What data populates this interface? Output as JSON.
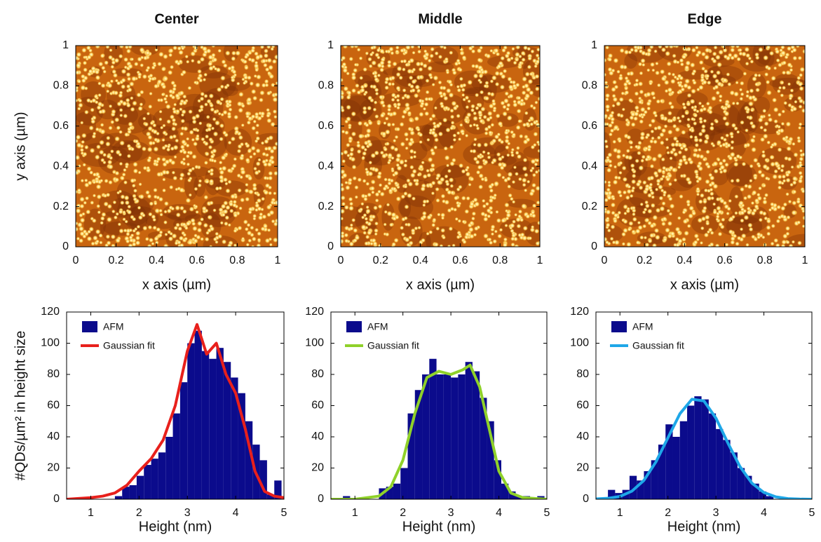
{
  "chart_data": [
    {
      "type": "image",
      "title": "Center",
      "xlabel": "x axis (µm)",
      "ylabel": "y axis (µm)",
      "xlim": [
        0,
        1
      ],
      "ylim": [
        0,
        1
      ],
      "xticks": [
        0,
        0.2,
        0.4,
        0.6,
        0.8,
        1
      ],
      "yticks": [
        0,
        0.2,
        0.4,
        0.6,
        0.8,
        1
      ]
    },
    {
      "type": "image",
      "title": "Middle",
      "xlabel": "x axis (µm)",
      "xlim": [
        0,
        1
      ],
      "ylim": [
        0,
        1
      ],
      "xticks": [
        0,
        0.2,
        0.4,
        0.6,
        0.8,
        1
      ],
      "yticks": [
        0,
        0.2,
        0.4,
        0.6,
        0.8,
        1
      ]
    },
    {
      "type": "image",
      "title": "Edge",
      "xlabel": "x axis (µm)",
      "xlim": [
        0,
        1
      ],
      "ylim": [
        0,
        1
      ],
      "xticks": [
        0,
        0.2,
        0.4,
        0.6,
        0.8,
        1
      ],
      "yticks": [
        0,
        0.2,
        0.4,
        0.6,
        0.8,
        1
      ]
    },
    {
      "type": "histogram",
      "xlabel": "Height (nm)",
      "ylabel": "#QDs/µm² in height size",
      "xlim": [
        0.5,
        5
      ],
      "ylim": [
        0,
        120
      ],
      "xticks": [
        1,
        2,
        3,
        4,
        5
      ],
      "yticks": [
        0,
        20,
        40,
        60,
        80,
        100,
        120
      ],
      "name": "AFM",
      "color": "#0b0b8c",
      "bins": [
        1.5,
        1.65,
        1.8,
        1.95,
        2.1,
        2.25,
        2.4,
        2.55,
        2.7,
        2.85,
        3.0,
        3.15,
        3.3,
        3.45,
        3.6,
        3.75,
        3.9,
        4.05,
        4.2,
        4.35,
        4.5,
        4.65,
        4.8,
        4.95
      ],
      "values": [
        2,
        8,
        9,
        15,
        22,
        26,
        30,
        40,
        55,
        75,
        100,
        108,
        95,
        90,
        97,
        88,
        78,
        68,
        50,
        35,
        25,
        3,
        12
      ],
      "fit": {
        "name": "Gaussian fit",
        "color": "#e8201c",
        "x": [
          0.5,
          0.75,
          1,
          1.25,
          1.5,
          1.75,
          2,
          2.25,
          2.5,
          2.75,
          3,
          3.2,
          3.4,
          3.6,
          3.8,
          4.0,
          4.2,
          4.4,
          4.6,
          4.8,
          5
        ],
        "values": [
          0,
          0.5,
          1,
          2,
          4,
          9,
          18,
          26,
          38,
          60,
          95,
          112,
          93,
          100,
          80,
          68,
          45,
          18,
          5,
          2,
          1
        ]
      }
    },
    {
      "type": "histogram",
      "xlabel": "Height (nm)",
      "xlim": [
        0.5,
        5
      ],
      "ylim": [
        0,
        120
      ],
      "xticks": [
        1,
        2,
        3,
        4,
        5
      ],
      "yticks": [
        0,
        20,
        40,
        60,
        80,
        100,
        120
      ],
      "name": "AFM",
      "color": "#0b0b8c",
      "bins": [
        0.75,
        0.9,
        1.05,
        1.2,
        1.35,
        1.5,
        1.65,
        1.8,
        1.95,
        2.1,
        2.25,
        2.4,
        2.55,
        2.7,
        2.85,
        3.0,
        3.15,
        3.3,
        3.45,
        3.6,
        3.75,
        3.9,
        4.05,
        4.2,
        4.35,
        4.5,
        4.65,
        4.8,
        4.95
      ],
      "values": [
        2,
        0,
        0,
        0,
        0,
        7,
        8,
        10,
        20,
        55,
        70,
        80,
        90,
        80,
        80,
        78,
        80,
        88,
        82,
        65,
        50,
        25,
        10,
        5,
        2,
        2,
        0,
        2
      ],
      "fit": {
        "name": "Gaussian fit",
        "color": "#8fd12a",
        "x": [
          0.5,
          1,
          1.5,
          1.75,
          2.0,
          2.25,
          2.5,
          2.75,
          3.0,
          3.25,
          3.4,
          3.6,
          3.8,
          4.0,
          4.25,
          4.5,
          5.0
        ],
        "values": [
          0,
          0,
          2,
          8,
          25,
          55,
          78,
          82,
          80,
          83,
          86,
          72,
          45,
          18,
          4,
          1,
          0
        ]
      }
    },
    {
      "type": "histogram",
      "xlabel": "Height (nm)",
      "xlim": [
        0.5,
        5
      ],
      "ylim": [
        0,
        120
      ],
      "xticks": [
        1,
        2,
        3,
        4,
        5
      ],
      "yticks": [
        0,
        20,
        40,
        60,
        80,
        100,
        120
      ],
      "name": "AFM",
      "color": "#0b0b8c",
      "bins": [
        0.75,
        0.9,
        1.05,
        1.2,
        1.35,
        1.5,
        1.65,
        1.8,
        1.95,
        2.1,
        2.25,
        2.4,
        2.55,
        2.7,
        2.85,
        3.0,
        3.15,
        3.3,
        3.45,
        3.6,
        3.75,
        3.9,
        4.05,
        4.2
      ],
      "values": [
        6,
        4,
        6,
        15,
        12,
        18,
        25,
        35,
        48,
        40,
        50,
        60,
        66,
        64,
        55,
        45,
        38,
        30,
        20,
        15,
        10,
        5,
        2
      ],
      "fit": {
        "name": "Gaussian fit",
        "color": "#1ea7e8",
        "x": [
          0.5,
          0.75,
          1,
          1.25,
          1.5,
          1.75,
          2,
          2.25,
          2.5,
          2.75,
          3,
          3.25,
          3.5,
          3.75,
          4,
          4.25,
          4.5,
          4.75,
          5
        ],
        "values": [
          0.2,
          0.6,
          1.8,
          5.2,
          12.1,
          23.9,
          39.4,
          54.8,
          64.1,
          63,
          52,
          36,
          21,
          10.3,
          4.3,
          1.5,
          0.4,
          0.1,
          0
        ]
      }
    }
  ]
}
